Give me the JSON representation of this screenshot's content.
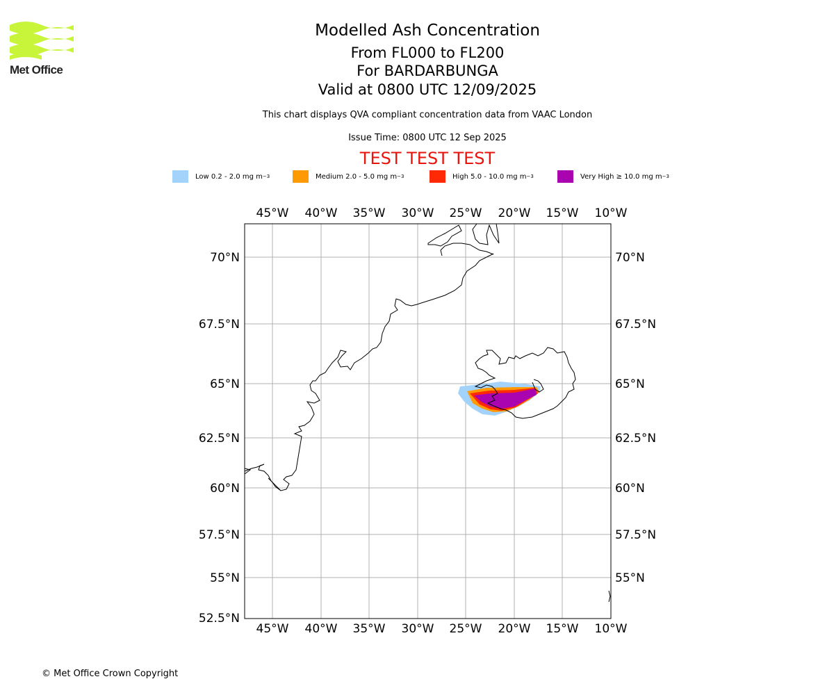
{
  "header": {
    "title": "Modelled Ash Concentration",
    "subtitle_levels": "From FL000 to FL200",
    "subtitle_volcano": "For BARDARBUNGA",
    "subtitle_valid": "Valid at 0800 UTC 12/09/2025",
    "description": "This chart displays QVA compliant concentration data from VAAC London",
    "issue_time": "Issue Time: 0800 UTC 12 Sep 2025",
    "test_banner": "TEST TEST TEST"
  },
  "logo": {
    "text": "Met Office",
    "color": "#c8f53a",
    "icon": "met-office-waves-logo"
  },
  "legend": [
    {
      "label": "Low 0.2 - 2.0 mg m",
      "sup": "−3",
      "color": "#a3d3fb"
    },
    {
      "label": "Medium 2.0 - 5.0 mg m",
      "sup": "−3",
      "color": "#ff9a05"
    },
    {
      "label": "High 5.0 - 10.0 mg m",
      "sup": "−3",
      "color": "#ff2a05"
    },
    {
      "label": "Very High  ≥  10.0 mg m",
      "sup": "−3",
      "color": "#aa04b0"
    }
  ],
  "map": {
    "lon_labels": [
      "45°W",
      "40°W",
      "35°W",
      "30°W",
      "25°W",
      "20°W",
      "15°W",
      "10°W"
    ],
    "lat_labels_left": [
      "70°N",
      "67.5°N",
      "65°N",
      "62.5°N",
      "60°N",
      "57.5°N",
      "55°N",
      "52.5°N"
    ],
    "lat_labels_right": [
      "70°N",
      "67.5°N",
      "65°N",
      "62.5°N",
      "60°N",
      "57.5°N",
      "55°N"
    ],
    "grid_color": "#b0b0b0"
  },
  "footer": {
    "copyright": "© Met Office Crown Copyright"
  }
}
